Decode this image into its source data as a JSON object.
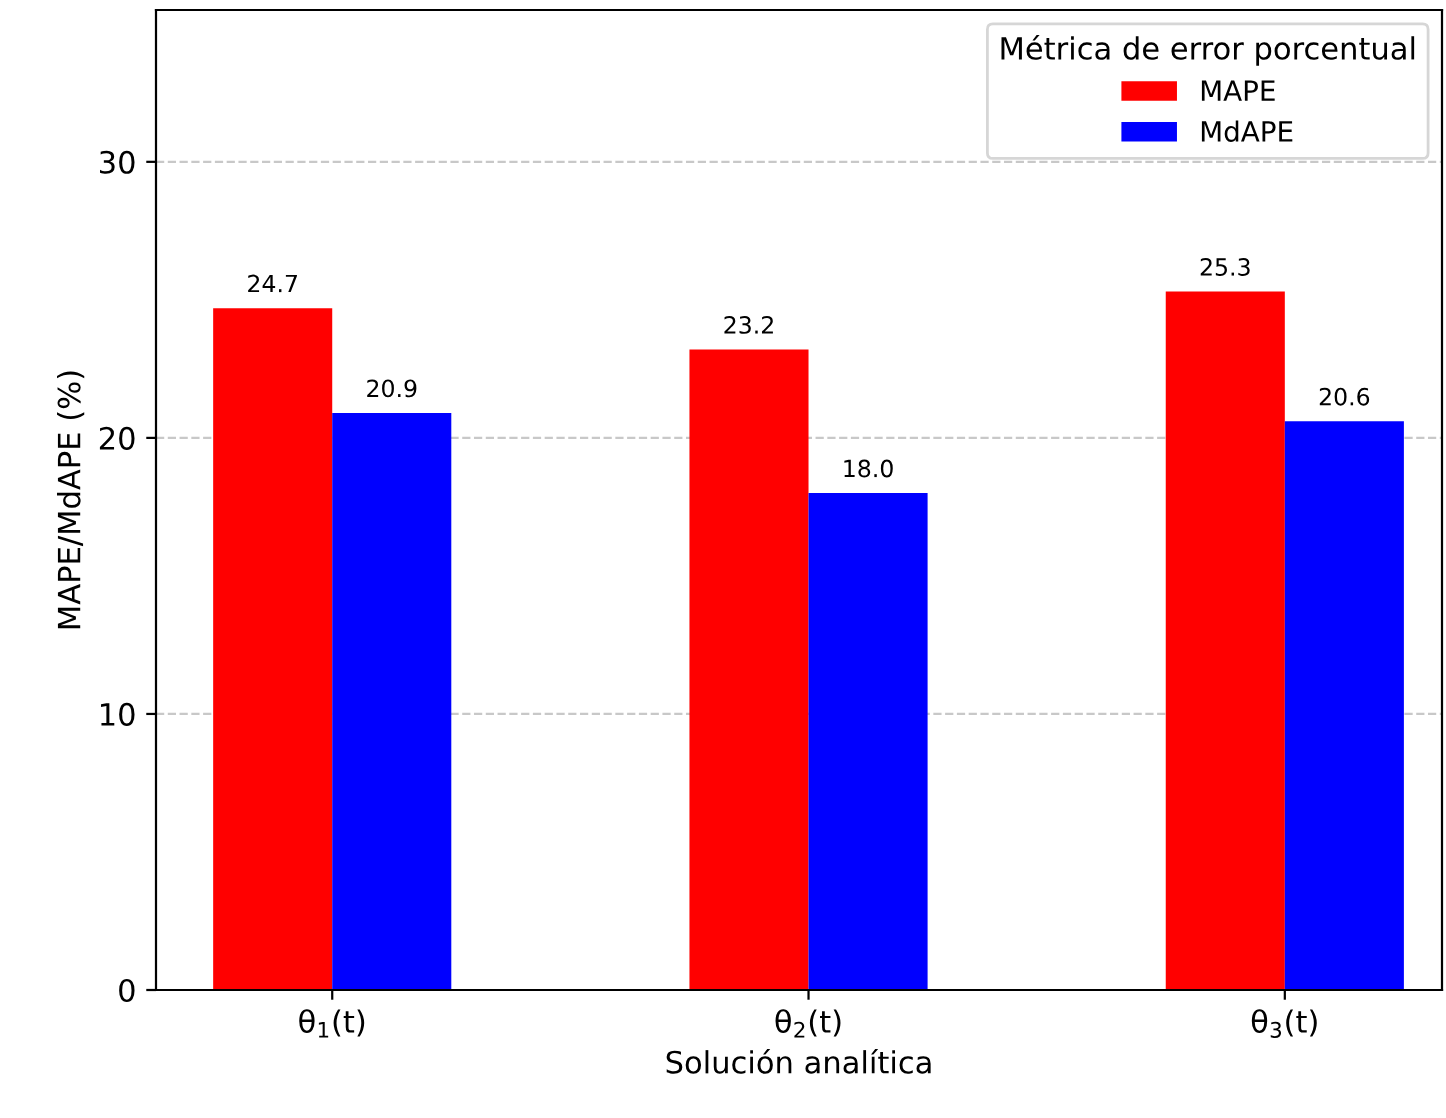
{
  "chart_data": {
    "type": "bar",
    "xlabel": "Solución analítica",
    "ylabel": "MAPE/MdAPE (%)",
    "legend_title": "Métrica de error porcentual",
    "categories": [
      "θ$_{1}$(t)",
      "θ$_{2}$(t)",
      "θ$_{3}$(t)"
    ],
    "series": [
      {
        "name": "MAPE",
        "color": "#ff0000",
        "values": [
          24.7,
          23.2,
          25.3
        ],
        "value_labels": [
          "24.7",
          "23.2",
          "25.3"
        ]
      },
      {
        "name": "MdAPE",
        "color": "#0000ff",
        "values": [
          20.9,
          18.0,
          20.6
        ],
        "value_labels": [
          "20.9",
          "18.0",
          "20.6"
        ]
      }
    ],
    "ylim": [
      0,
      35.5
    ],
    "yticks": [
      0,
      10,
      20,
      30
    ],
    "grid": "y",
    "legend": "top right"
  }
}
